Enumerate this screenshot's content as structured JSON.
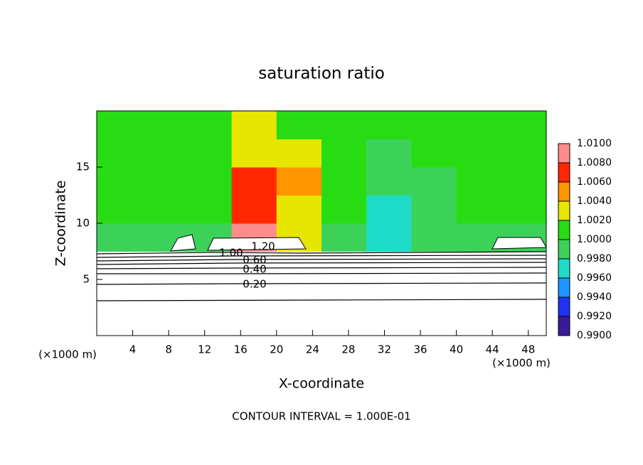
{
  "chart_data": {
    "type": "heatmap",
    "title": "saturation ratio",
    "x_label": "X-coordinate",
    "y_label": "Z-coordinate",
    "x_unit_label": "(×1000 m)",
    "footer": "CONTOUR INTERVAL = 1.000E-01",
    "contour_labels": [
      "0.20",
      "0.40",
      "0.60",
      "1.00",
      "1.20"
    ],
    "xlim": [
      0,
      50
    ],
    "xticks": [
      4,
      8,
      12,
      16,
      20,
      24,
      28,
      32,
      36,
      40,
      44,
      48
    ],
    "ylim": [
      0,
      20
    ],
    "yticks": [
      5,
      10,
      15
    ],
    "x_edges": [
      0,
      5,
      10,
      15,
      20,
      25,
      30,
      35,
      40,
      45,
      50
    ],
    "y_edges": [
      0,
      2.5,
      5,
      7.5,
      10,
      12.5,
      15,
      17.5,
      20
    ],
    "z": [
      [
        null,
        null,
        null,
        null,
        null,
        null,
        null,
        null,
        null,
        null
      ],
      [
        null,
        null,
        null,
        null,
        null,
        null,
        null,
        null,
        null,
        null
      ],
      [
        null,
        null,
        null,
        null,
        null,
        null,
        null,
        null,
        null,
        null
      ],
      [
        0.9985,
        0.9985,
        0.999,
        1.008,
        1.002,
        0.9985,
        0.9965,
        0.998,
        0.9985,
        0.999
      ],
      [
        1.0,
        1.0,
        1.001,
        1.007,
        1.003,
        1.0,
        0.997,
        0.999,
        1.0,
        1.0
      ],
      [
        1.0,
        1.0,
        1.001,
        1.006,
        1.004,
        1.0,
        0.9985,
        0.9995,
        1.0,
        1.0
      ],
      [
        1.0,
        1.0,
        1.001,
        1.003,
        1.002,
        1.0,
        0.9995,
        1.0,
        1.0,
        1.0
      ],
      [
        1.0,
        1.0,
        1.0,
        1.002,
        1.001,
        1.0,
        1.0,
        1.0,
        1.0,
        1.0
      ]
    ],
    "colorbar_lim": [
      0.99,
      1.01
    ],
    "colorbar_colors": [
      "#3a1a9a",
      "#1e32f0",
      "#1e96ff",
      "#1edcc8",
      "#3cd25a",
      "#28dc14",
      "#e6e600",
      "#ff9600",
      "#ff2800",
      "#ff8c8c"
    ],
    "colorbar_ticks": [
      {
        "value": 0.99,
        "label": "0.9900"
      },
      {
        "value": 0.992,
        "label": "0.9920"
      },
      {
        "value": 0.994,
        "label": "0.9940"
      },
      {
        "value": 0.996,
        "label": "0.9960"
      },
      {
        "value": 0.998,
        "label": "0.9980"
      },
      {
        "value": 1.0,
        "label": "1.0000"
      },
      {
        "value": 1.002,
        "label": "1.0020"
      },
      {
        "value": 1.004,
        "label": "1.0040"
      },
      {
        "value": 1.006,
        "label": "1.0060"
      },
      {
        "value": 1.008,
        "label": "1.0080"
      },
      {
        "value": 1.01,
        "label": "1.0100"
      }
    ]
  }
}
